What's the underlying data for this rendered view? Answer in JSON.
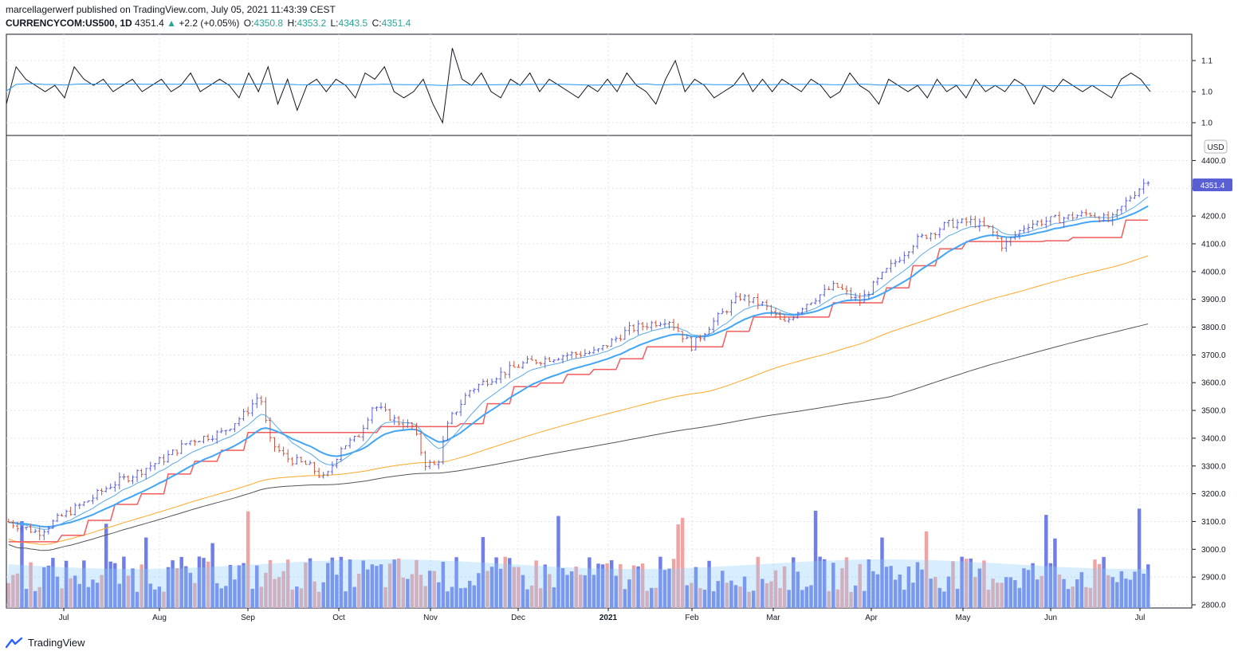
{
  "header": {
    "author": "marcellagerwerf",
    "published_text": "published on TradingView.com, July 05, 2021 11:43:39 CEST",
    "symbol": "CURRENCYCOM:US500, 1D",
    "last": "4351.4",
    "change": "+2.2 (+0.05%)",
    "o_label": "O:",
    "o_value": "4350.8",
    "h_label": "H:",
    "h_value": "4353.2",
    "l_label": "L:",
    "l_value": "4343.5",
    "c_label": "C:",
    "c_value": "4351.4"
  },
  "footer": {
    "brand": "TradingView"
  },
  "colors": {
    "bull_bar": "#5b5fd6",
    "bear_bar": "#c8553d",
    "vol_bull": "#6f7ee8",
    "vol_bear": "#f0a3a3",
    "ema_fast": "#5aa9e6",
    "ema_mid": "#42a5f5",
    "trail": "#f25c5c",
    "ma100": "#ffa726",
    "ma200": "#555555",
    "price_tag": "#5b5fd6"
  },
  "chart_data": {
    "type": "ohlc",
    "currency_label": "USD",
    "last_price_tag": "4351.4",
    "price_axis_ticks": [
      "4400.0",
      "4300.0",
      "4200.0",
      "4100.0",
      "4000.0",
      "3900.0",
      "3800.0",
      "3700.0",
      "3600.0",
      "3500.0",
      "3400.0",
      "3300.0",
      "3200.0",
      "3100.0",
      "3000.0",
      "2900.0",
      "2800.0"
    ],
    "ylim": [
      2800,
      4450
    ],
    "time_axis_labels": [
      "Jul",
      "Aug",
      "Sep",
      "Oct",
      "Nov",
      "Dec",
      "2021",
      "Feb",
      "Mar",
      "Apr",
      "May",
      "Jun",
      "Jul"
    ],
    "upper_pane": {
      "ticks": [
        "1.1",
        "1.0",
        "1.0"
      ],
      "ratio_series": [
        0.98,
        1.04,
        1.02,
        1.01,
        1.0,
        1.01,
        0.99,
        1.04,
        1.02,
        1.01,
        1.02,
        1.0,
        1.01,
        1.02,
        1.0,
        1.01,
        1.02,
        1.0,
        1.01,
        1.03,
        1.0,
        1.01,
        1.02,
        1.01,
        0.99,
        1.03,
        1.0,
        1.04,
        0.98,
        1.02,
        0.97,
        1.01,
        1.02,
        1.0,
        1.02,
        1.01,
        0.99,
        1.03,
        1.02,
        1.04,
        1.0,
        0.99,
        1.0,
        1.02,
        0.98,
        0.95,
        1.07,
        1.02,
        1.01,
        1.03,
        1.0,
        0.99,
        1.02,
        1.01,
        1.03,
        1.0,
        1.02,
        1.01,
        1.0,
        0.99,
        1.01,
        1.0,
        1.02,
        1.0,
        1.03,
        1.01,
        1.0,
        0.98,
        1.02,
        1.05,
        1.0,
        1.02,
        1.01,
        0.99,
        1.0,
        1.01,
        1.03,
        1.0,
        1.02,
        1.0,
        1.02,
        1.01,
        1.0,
        1.02,
        1.01,
        0.99,
        1.0,
        1.03,
        1.01,
        1.0,
        0.98,
        1.02,
        1.01,
        1.0,
        1.01,
        0.99,
        1.02,
        1.0,
        1.01,
        0.99,
        1.02,
        1.0,
        1.01,
        1.0,
        1.02,
        1.01,
        0.98,
        1.01,
        1.0,
        1.02,
        1.01,
        1.0,
        1.01,
        1.0,
        0.99,
        1.02,
        1.03,
        1.02,
        1.0
      ],
      "ratio_avg": 1.01
    },
    "series_names": [],
    "bars_note_omitted": true
  }
}
